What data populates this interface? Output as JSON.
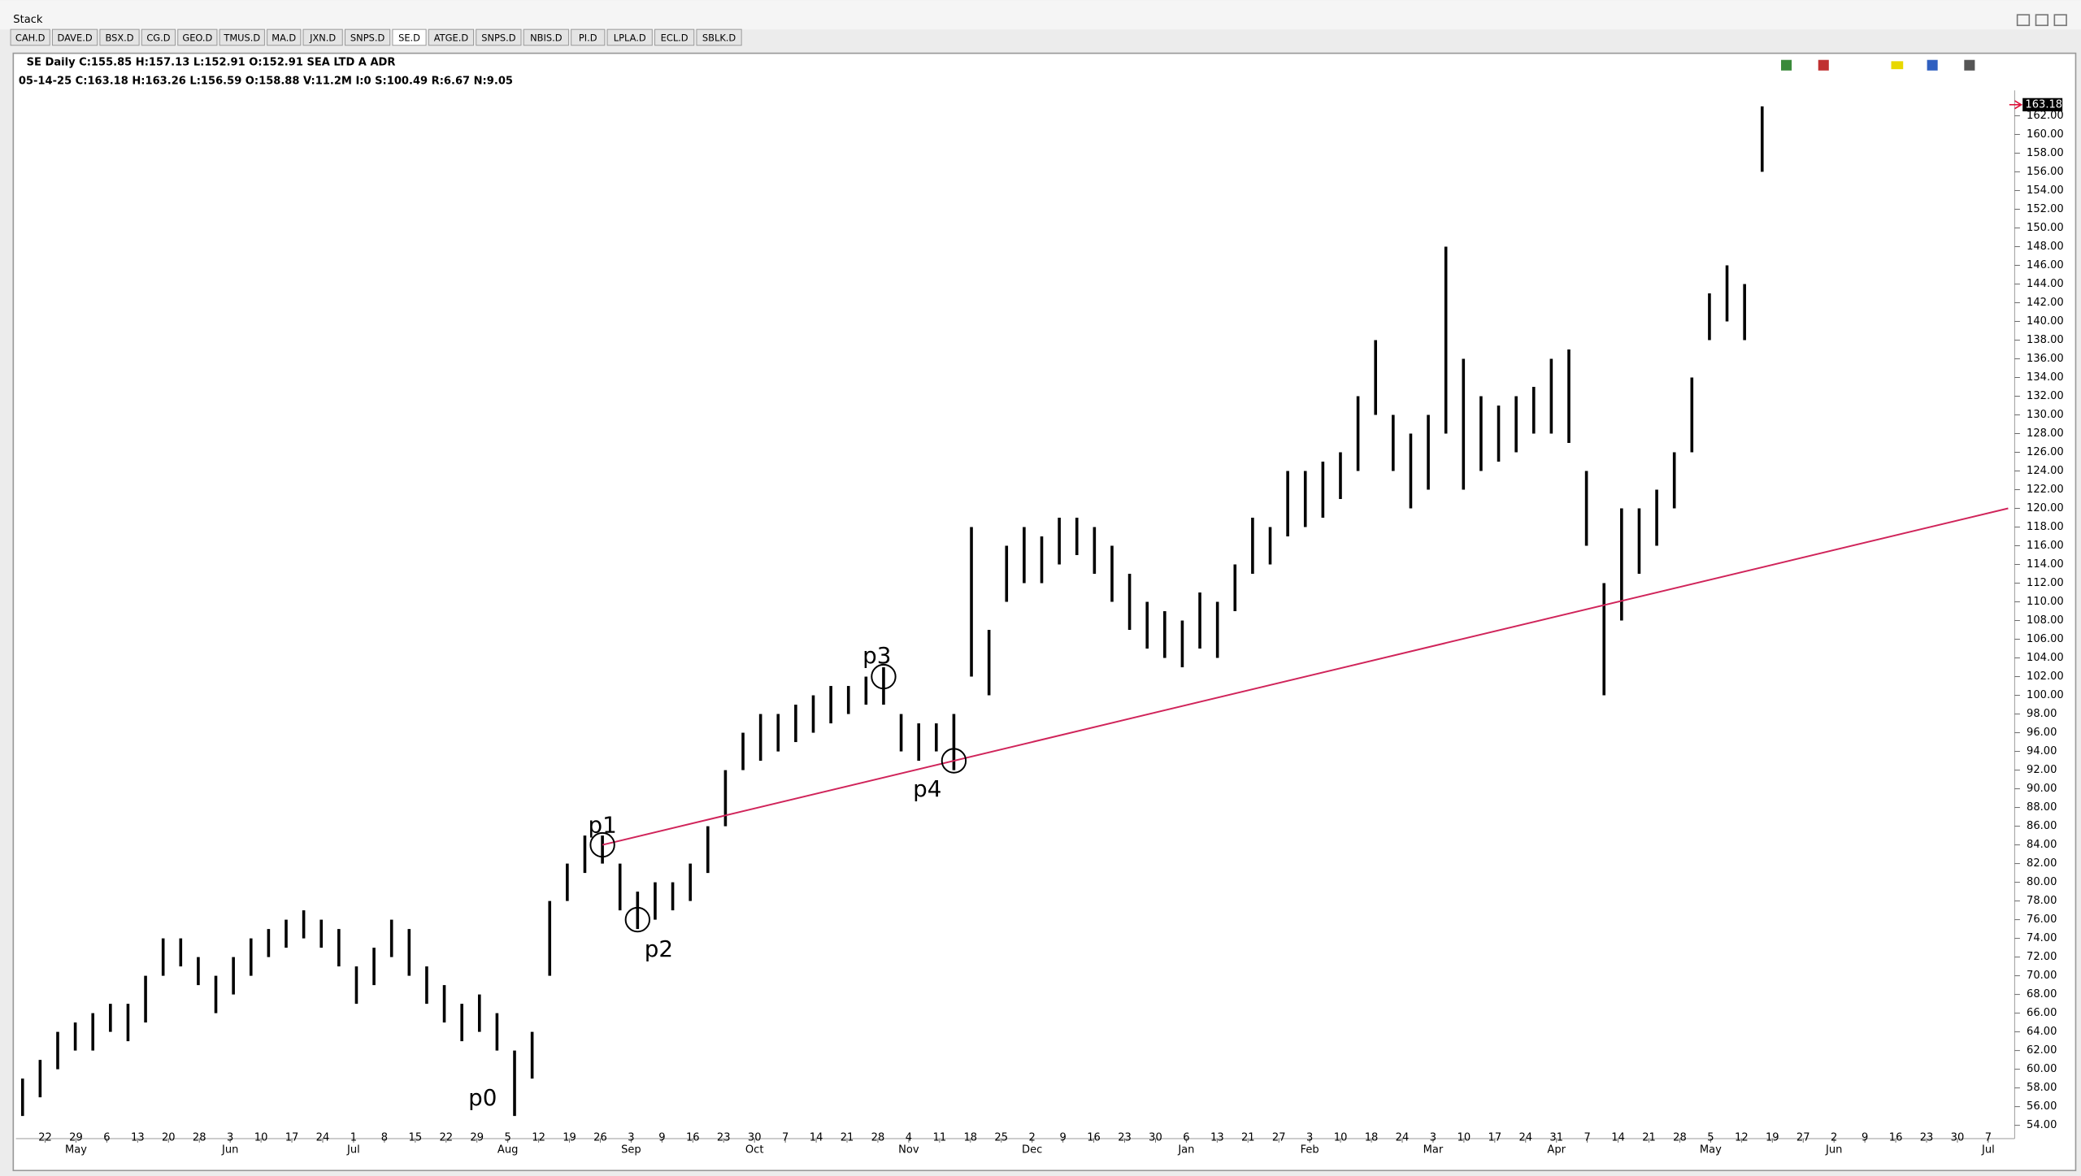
{
  "window_title": "Stack",
  "tabs": [
    "CAH.D",
    "DAVE.D",
    "BSX.D",
    "CG.D",
    "GEO.D",
    "TMUS.D",
    "MA.D",
    "JXN.D",
    "SNPS.D",
    "SE.D",
    "ATGE.D",
    "SNPS.D",
    "NBIS.D",
    "PI.D",
    "LPLA.D",
    "ECL.D",
    "SBLK.D"
  ],
  "active_tab": 9,
  "chart_data": {
    "type": "ohlc",
    "title": "SE Daily C:155.85 H:157.13 L:152.91 O:152.91 SEA LTD A ADR",
    "subtitle": "05-14-25 C:163.18 H:163.26 L:156.59 O:158.88 V:11.2M I:0 S:100.49 R:6.67 N:9.05",
    "color": "#000000",
    "high": [
      59,
      61,
      64,
      65,
      66,
      67,
      67,
      70,
      74,
      74,
      72,
      70,
      72,
      74,
      75,
      76,
      77,
      76,
      75,
      71,
      73,
      76,
      75,
      71,
      69,
      67,
      68,
      66,
      62,
      64,
      78,
      82,
      85,
      85,
      82,
      79,
      80,
      80,
      82,
      86,
      92,
      96,
      98,
      98,
      99,
      100,
      101,
      101,
      102,
      103,
      98,
      97,
      97,
      98,
      118,
      107,
      116,
      118,
      117,
      119,
      119,
      118,
      116,
      113,
      110,
      109,
      108,
      111,
      110,
      114,
      119,
      118,
      124,
      124,
      125,
      126,
      132,
      138,
      130,
      128,
      130,
      148,
      136,
      132,
      131,
      132,
      133,
      136,
      137,
      124,
      112,
      120,
      120,
      122,
      126,
      134,
      143,
      146,
      144,
      163
    ],
    "low": [
      55,
      57,
      60,
      62,
      62,
      64,
      63,
      65,
      70,
      71,
      69,
      66,
      68,
      70,
      72,
      73,
      74,
      73,
      71,
      67,
      69,
      72,
      70,
      67,
      65,
      63,
      64,
      62,
      55,
      59,
      70,
      78,
      81,
      82,
      77,
      75,
      76,
      77,
      78,
      81,
      86,
      92,
      93,
      94,
      95,
      96,
      97,
      98,
      99,
      99,
      94,
      93,
      94,
      92,
      102,
      100,
      110,
      112,
      112,
      114,
      115,
      113,
      110,
      107,
      105,
      104,
      103,
      105,
      104,
      109,
      113,
      114,
      117,
      118,
      119,
      121,
      124,
      130,
      124,
      120,
      122,
      128,
      122,
      124,
      125,
      126,
      128,
      128,
      127,
      116,
      100,
      108,
      113,
      116,
      120,
      126,
      138,
      140,
      138,
      156
    ],
    "ylim": [
      53,
      164
    ],
    "yticks": [
      {
        "value": 54,
        "label": "54.00"
      },
      {
        "value": 56,
        "label": "56.00"
      },
      {
        "value": 58,
        "label": "58.00"
      },
      {
        "value": 60,
        "label": "60.00"
      },
      {
        "value": 62,
        "label": "62.00"
      },
      {
        "value": 64,
        "label": "64.00"
      },
      {
        "value": 66,
        "label": "66.00"
      },
      {
        "value": 68,
        "label": "68.00"
      },
      {
        "value": 70,
        "label": "70.00"
      },
      {
        "value": 72,
        "label": "72.00"
      },
      {
        "value": 74,
        "label": "74.00"
      },
      {
        "value": 76,
        "label": "76.00"
      },
      {
        "value": 78,
        "label": "78.00"
      },
      {
        "value": 80,
        "label": "80.00"
      },
      {
        "value": 82,
        "label": "82.00"
      },
      {
        "value": 84,
        "label": "84.00"
      },
      {
        "value": 86,
        "label": "86.00"
      },
      {
        "value": 88,
        "label": "88.00"
      },
      {
        "value": 90,
        "label": "90.00"
      },
      {
        "value": 92,
        "label": "92.00"
      },
      {
        "value": 94,
        "label": "94.00"
      },
      {
        "value": 96,
        "label": "96.00"
      },
      {
        "value": 98,
        "label": "98.00"
      },
      {
        "value": 100,
        "label": "100.00"
      },
      {
        "value": 102,
        "label": "102.00"
      },
      {
        "value": 104,
        "label": "104.00"
      },
      {
        "value": 106,
        "label": "106.00"
      },
      {
        "value": 108,
        "label": "108.00"
      },
      {
        "value": 110,
        "label": "110.00"
      },
      {
        "value": 112,
        "label": "112.00"
      },
      {
        "value": 114,
        "label": "114.00"
      },
      {
        "value": 116,
        "label": "116.00"
      },
      {
        "value": 118,
        "label": "118.00"
      },
      {
        "value": 120,
        "label": "120.00"
      },
      {
        "value": 122,
        "label": "122.00"
      },
      {
        "value": 124,
        "label": "124.00"
      },
      {
        "value": 126,
        "label": "126.00"
      },
      {
        "value": 128,
        "label": "128.00"
      },
      {
        "value": 130,
        "label": "130.00"
      },
      {
        "value": 132,
        "label": "132.00"
      },
      {
        "value": 134,
        "label": "134.00"
      },
      {
        "value": 136,
        "label": "136.00"
      },
      {
        "value": 138,
        "label": "138.00"
      },
      {
        "value": 140,
        "label": "140.00"
      },
      {
        "value": 142,
        "label": "142.00"
      },
      {
        "value": 144,
        "label": "144.00"
      },
      {
        "value": 146,
        "label": "146.00"
      },
      {
        "value": 148,
        "label": "148.00"
      },
      {
        "value": 150,
        "label": "150.00"
      },
      {
        "value": 152,
        "label": "152.00"
      },
      {
        "value": 154,
        "label": "154.00"
      },
      {
        "value": 156,
        "label": "156.00"
      },
      {
        "value": 158,
        "label": "158.00"
      },
      {
        "value": 160,
        "label": "160.00"
      },
      {
        "value": 162,
        "label": "162.00"
      }
    ],
    "last_price": 163.18,
    "last_price_color": "#e0143c",
    "xticks": [
      "22",
      "29",
      "6",
      "13",
      "20",
      "28",
      "3",
      "10",
      "17",
      "24",
      "1",
      "8",
      "15",
      "22",
      "29",
      "5",
      "12",
      "19",
      "26",
      "3",
      "9",
      "16",
      "23",
      "30",
      "7",
      "14",
      "21",
      "28",
      "4",
      "11",
      "18",
      "25",
      "2",
      "9",
      "16",
      "23",
      "30",
      "6",
      "13",
      "21",
      "27",
      "3",
      "10",
      "18",
      "24",
      "3",
      "10",
      "17",
      "24",
      "31",
      "7",
      "14",
      "21",
      "28",
      "5",
      "12",
      "19",
      "27",
      "2",
      "9",
      "16",
      "23",
      "30",
      "7"
    ],
    "xtick_months": [
      null,
      "May",
      null,
      null,
      null,
      null,
      "Jun",
      null,
      null,
      null,
      "Jul",
      null,
      null,
      null,
      null,
      "Aug",
      null,
      null,
      null,
      "Sep",
      null,
      null,
      null,
      "Oct",
      null,
      null,
      null,
      null,
      "Nov",
      null,
      null,
      null,
      "Dec",
      null,
      null,
      null,
      null,
      "Jan",
      null,
      null,
      null,
      "Feb",
      null,
      null,
      null,
      "Mar",
      null,
      null,
      null,
      "Apr",
      null,
      null,
      null,
      null,
      "May",
      null,
      null,
      null,
      "Jun",
      null,
      null,
      null,
      null,
      "Jul"
    ],
    "trendline": {
      "x": [
        33,
        113
      ],
      "y": [
        84,
        120
      ],
      "color": "#d0245a"
    },
    "pivots": [
      {
        "label": "p0",
        "x": 28,
        "y": 55,
        "circled": false
      },
      {
        "label": "p1",
        "x": 33,
        "y": 84,
        "circled": true
      },
      {
        "label": "p2",
        "x": 35,
        "y": 76,
        "circled": true
      },
      {
        "label": "p3",
        "x": 49,
        "y": 102,
        "circled": true
      },
      {
        "label": "p4",
        "x": 53,
        "y": 93,
        "circled": true
      }
    ]
  }
}
